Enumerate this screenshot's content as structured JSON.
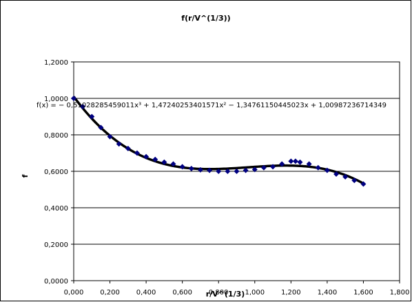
{
  "chart_data": {
    "type": "scatter",
    "title": "f(r/V^(1/3))",
    "xlabel": "r/V^(1/3)",
    "ylabel": "f",
    "xlim": [
      0,
      1.8
    ],
    "ylim": [
      0,
      1.2
    ],
    "x_ticks": [
      "0,000",
      "0,200",
      "0,400",
      "0,600",
      "0,800",
      "1,000",
      "1,200",
      "1,400",
      "1,600",
      "1,800"
    ],
    "y_ticks": [
      "0,0000",
      "0,2000",
      "0,4000",
      "0,6000",
      "0,8000",
      "1,0000",
      "1,2000"
    ],
    "grid": "horizontal",
    "marker_color": "#000080",
    "trendline_color": "#000000",
    "series": [
      {
        "x": [
          0.0,
          0.05,
          0.1,
          0.15,
          0.2,
          0.25,
          0.3,
          0.35,
          0.4,
          0.45,
          0.5,
          0.55,
          0.6,
          0.65,
          0.7,
          0.75,
          0.8,
          0.85,
          0.9,
          0.95,
          1.0,
          1.05,
          1.1,
          1.15,
          1.2,
          1.225,
          1.25,
          1.3,
          1.35,
          1.4,
          1.45,
          1.5,
          1.55,
          1.6
        ],
        "y": [
          1.0,
          0.955,
          0.9,
          0.84,
          0.79,
          0.75,
          0.725,
          0.7,
          0.68,
          0.665,
          0.65,
          0.64,
          0.625,
          0.615,
          0.608,
          0.605,
          0.6,
          0.6,
          0.6,
          0.605,
          0.61,
          0.62,
          0.625,
          0.64,
          0.655,
          0.655,
          0.65,
          0.64,
          0.62,
          0.605,
          0.585,
          0.57,
          0.55,
          0.53
        ]
      }
    ],
    "trendline": {
      "type": "polynomial",
      "coefficients": [
        -0.51028285459011,
        1.47240253401571,
        -1.34761150445023,
        1.00987236714349
      ],
      "x_range": [
        0,
        1.6
      ],
      "equation": "f(x) = − 0,51028285459011x³ + 1,47240253401571x² − 1,34761150445023x + 1,00987236714349"
    }
  }
}
